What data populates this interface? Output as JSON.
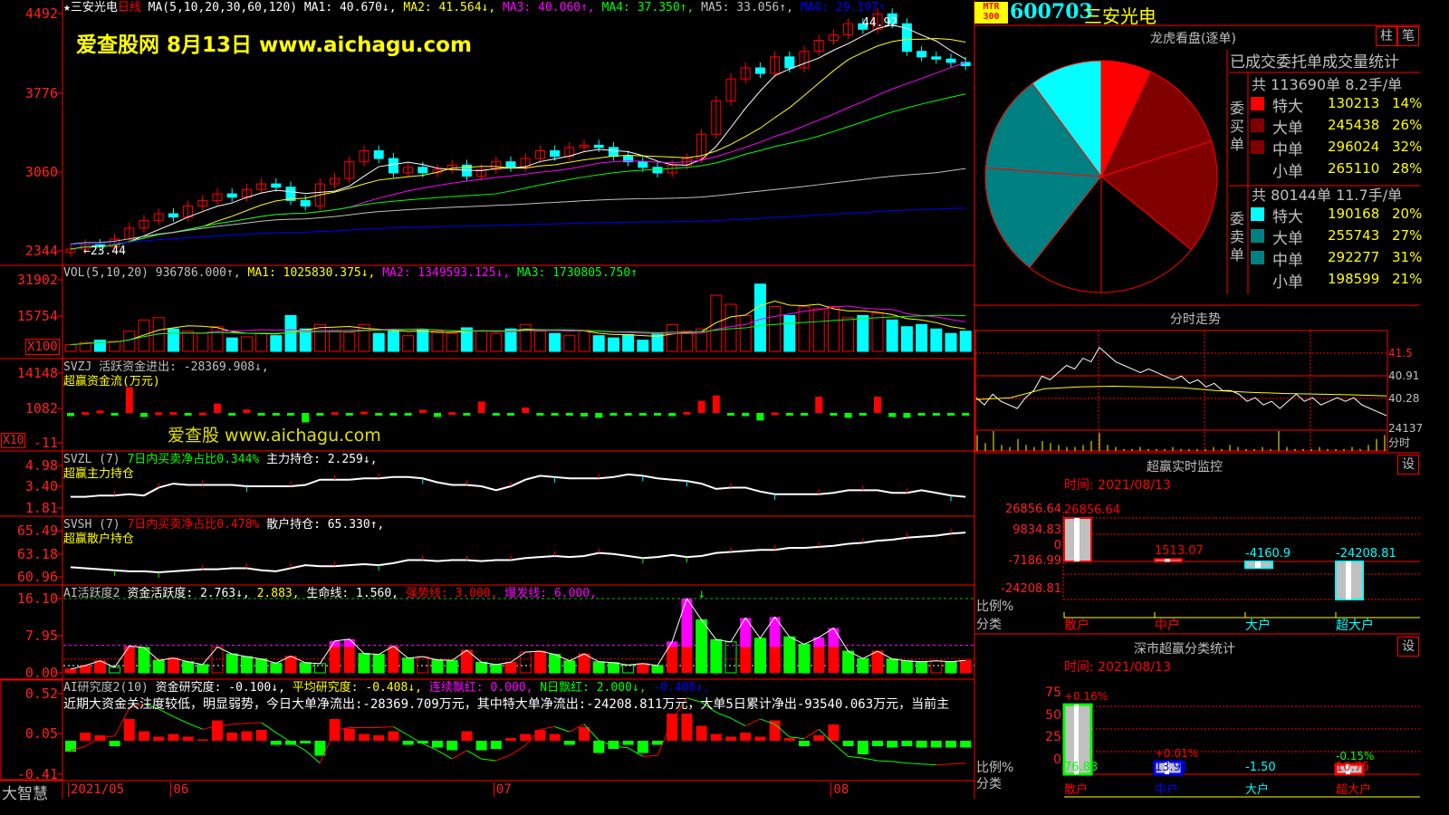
{
  "colors": {
    "up": "#ff0000",
    "down": "#00ffff",
    "axis": "#ff2020",
    "ma": [
      "#ffffff",
      "#ffff00",
      "#ff00ff",
      "#00ff00",
      "#c0c0c0",
      "#0000ff"
    ]
  },
  "main": {
    "header": [
      {
        "t": "★三安光电",
        "c": "#ffffff"
      },
      {
        "t": "日线 ",
        "c": "#ff0000"
      },
      {
        "t": "MA(5,10,20,30,60,120) MA1: 40.670↓, ",
        "c": "#ffffff"
      },
      {
        "t": "MA2: 41.564↓, ",
        "c": "#ffff00"
      },
      {
        "t": "MA3: 40.060↑, ",
        "c": "#ff00ff"
      },
      {
        "t": "MA4: 37.350↑, ",
        "c": "#00ff00"
      },
      {
        "t": "MA5: 33.056↑, ",
        "c": "#c0c0c0"
      },
      {
        "t": "MA6: 29.197↑",
        "c": "#0000ff"
      }
    ],
    "axis": [
      "4492",
      "3776",
      "3060",
      "2344"
    ],
    "high_label": "44.92",
    "low_label": "←23.44",
    "watermark": "爱查股网   8月13日   www.aichagu.com",
    "closes": [
      23.6,
      24.0,
      23.8,
      24.5,
      25.5,
      26.2,
      26.8,
      26.5,
      27.5,
      28.0,
      28.6,
      28.3,
      29.0,
      29.5,
      29.2,
      28.0,
      27.5,
      29.5,
      30.0,
      31.5,
      32.5,
      31.8,
      30.5,
      31.0,
      30.5,
      30.8,
      31.2,
      30.2,
      30.8,
      31.5,
      31.0,
      31.8,
      32.5,
      32.0,
      32.8,
      33.0,
      32.8,
      32.0,
      31.5,
      31.0,
      30.5,
      31.2,
      31.8,
      34.0,
      37.0,
      39.0,
      40.0,
      39.5,
      41.0,
      40.0,
      41.5,
      42.5,
      43.0,
      44.0,
      43.5,
      44.9,
      44.0,
      41.5,
      41.0,
      40.8,
      40.5,
      40.2
    ],
    "price_range": [
      23.44,
      44.92
    ]
  },
  "vol": {
    "header": [
      {
        "t": "VOL(5,10,20) 936786.000↑, ",
        "c": "#c0c0c0"
      },
      {
        "t": "MA1: 1025830.375↓, ",
        "c": "#ffff00"
      },
      {
        "t": "MA2: 1349593.125↓, ",
        "c": "#ff00ff"
      },
      {
        "t": "MA3: 1730805.750↑",
        "c": "#00ff00"
      }
    ],
    "axis": [
      "31902",
      "15754"
    ],
    "unit": "X100",
    "values": [
      3000,
      4000,
      5000,
      4500,
      9000,
      14000,
      15000,
      10000,
      9000,
      8000,
      11000,
      6000,
      6500,
      8000,
      7000,
      16000,
      10000,
      12000,
      9000,
      8500,
      12000,
      8000,
      9000,
      7000,
      9500,
      9000,
      8000,
      10500,
      9000,
      8000,
      10000,
      12000,
      9000,
      8000,
      7000,
      9500,
      7000,
      6000,
      7500,
      5000,
      8000,
      12000,
      9000,
      10000,
      25000,
      21000,
      16000,
      30000,
      20000,
      16000,
      20000,
      19000,
      20000,
      15000,
      16000,
      17000,
      14000,
      11000,
      12000,
      10000,
      8000,
      9000
    ]
  },
  "svzj": {
    "header": [
      {
        "t": "SVZJ  活跃资金进出: -28369.908↓,",
        "c": "#c0c0c0"
      }
    ],
    "sub": "超赢资金流(万元)",
    "axis": [
      "14148",
      "1082",
      "-11"
    ],
    "unit": "X10",
    "watermark": "爱查股 www.aichagu.com",
    "values": [
      -1200,
      300,
      900,
      -900,
      9500,
      -1500,
      200,
      300,
      -500,
      100,
      3500,
      -200,
      1300,
      -200,
      -900,
      -1000,
      -3500,
      -600,
      300,
      -1000,
      500,
      -600,
      -800,
      -400,
      1200,
      -1500,
      300,
      -200,
      4200,
      -1000,
      -800,
      2000,
      -500,
      -700,
      -200,
      -1300,
      -1800,
      -600,
      -1000,
      -400,
      -200,
      -1200,
      400,
      4500,
      6500,
      -600,
      -1200,
      -2800,
      200,
      -400,
      -300,
      6000,
      -800,
      -1800,
      -600,
      6000,
      -1500,
      -1800,
      -900,
      -300,
      -200,
      -700
    ]
  },
  "svzl": {
    "header": [
      {
        "t": "SVZL (7) ",
        "c": "#c0c0c0"
      },
      {
        "t": "7日内买卖净占比0.344% ",
        "c": "#00ff00"
      },
      {
        "t": "主力持仓: 2.259↓,",
        "c": "#ffffff"
      }
    ],
    "sub": "超赢主力持仓",
    "axis": [
      "4.98",
      "3.40",
      "1.81"
    ],
    "values": [
      2.6,
      2.6,
      2.7,
      2.7,
      2.8,
      2.7,
      3.3,
      3.6,
      3.5,
      3.5,
      3.5,
      3.5,
      3.4,
      3.4,
      3.4,
      3.4,
      3.5,
      3.9,
      3.9,
      3.9,
      4.0,
      4.0,
      4.1,
      4.1,
      4.0,
      3.7,
      3.5,
      3.5,
      3.4,
      3.1,
      3.4,
      3.9,
      4.2,
      4.1,
      4.0,
      4.0,
      4.0,
      4.1,
      4.3,
      4.2,
      4.0,
      3.9,
      3.8,
      3.6,
      3.2,
      3.3,
      3.3,
      3.0,
      2.8,
      2.8,
      2.8,
      2.8,
      2.9,
      3.1,
      3.1,
      3.1,
      2.9,
      2.9,
      3.1,
      2.9,
      2.7,
      2.6
    ]
  },
  "svsh": {
    "header": [
      {
        "t": "SVSH (7) ",
        "c": "#c0c0c0"
      },
      {
        "t": "7日内买卖净占比0.478% ",
        "c": "#ff0000"
      },
      {
        "t": "散户持仓: 65.330↑,",
        "c": "#ffffff"
      }
    ],
    "sub": "超赢散户持仓",
    "axis": [
      "65.49",
      "63.18",
      "60.96"
    ],
    "values": [
      61.9,
      61.8,
      61.7,
      61.6,
      61.5,
      61.5,
      61.4,
      61.5,
      61.6,
      61.7,
      61.7,
      61.8,
      61.8,
      61.6,
      61.5,
      61.8,
      62.1,
      62.0,
      62.0,
      62.1,
      62.2,
      62.1,
      62.3,
      62.6,
      62.6,
      62.5,
      62.6,
      62.6,
      62.5,
      62.6,
      62.6,
      62.8,
      62.9,
      63.0,
      62.9,
      63.0,
      63.3,
      63.2,
      63.0,
      62.8,
      62.9,
      63.1,
      62.9,
      63.0,
      63.3,
      63.4,
      63.5,
      63.6,
      63.6,
      63.8,
      63.8,
      63.9,
      64.0,
      64.2,
      64.3,
      64.5,
      64.6,
      64.8,
      64.9,
      65.0,
      65.2,
      65.3
    ]
  },
  "active": {
    "header": [
      {
        "t": "AI活跃度2 ",
        "c": "#c0c0c0"
      },
      {
        "t": "资金活跃度: 2.763↓, ",
        "c": "#ffffff"
      },
      {
        "t": "2.883, ",
        "c": "#ffff00"
      },
      {
        "t": "生命线: 1.560, ",
        "c": "#ffffff"
      },
      {
        "t": "强势线: 3.000, ",
        "c": "#ff0000"
      },
      {
        "t": "爆发线: 6.000,",
        "c": "#ff00ff"
      }
    ],
    "axis": [
      "16.10",
      "7.95",
      "0.00"
    ],
    "values": [
      0.8,
      1.6,
      2.6,
      1.2,
      5.8,
      5.5,
      2.7,
      3.2,
      2.4,
      1.8,
      5.6,
      4.1,
      3.5,
      3.0,
      2.1,
      3.6,
      2.2,
      2.0,
      6.9,
      7.3,
      4.2,
      4.0,
      5.8,
      3.2,
      3.5,
      2.8,
      2.7,
      4.9,
      2.3,
      1.8,
      2.3,
      4.5,
      4.7,
      4.0,
      2.6,
      4.1,
      2.4,
      2.2,
      1.7,
      2.0,
      1.6,
      6.8,
      16.1,
      11.5,
      7.2,
      6.7,
      11.9,
      7.5,
      12.1,
      7.8,
      6.2,
      7.7,
      9.7,
      4.7,
      3.1,
      4.7,
      3.0,
      2.6,
      2.4,
      2.6,
      2.4,
      2.7
    ],
    "lines": {
      "burst": 6,
      "strong": 3,
      "life": 1.56,
      "max": 16.1
    }
  },
  "research": {
    "header": [
      {
        "t": "AI研究度2(10) ",
        "c": "#c0c0c0"
      },
      {
        "t": "资金研究度: -0.100↓, ",
        "c": "#ffffff"
      },
      {
        "t": "平均研究度: -0.408↓, ",
        "c": "#ffff00"
      },
      {
        "t": "连续飘红: 0.000, ",
        "c": "#ff00ff"
      },
      {
        "t": "N日飘红: 2.000↓, ",
        "c": "#00ff00"
      },
      {
        "t": "-0.408↓,",
        "c": "#0000ff"
      }
    ],
    "comment": "近期大资金关注度较低，明显弱势，今日大单净流出:-28369.709万元，其中特大单净流出:-24208.811万元，大单5日累计净出-93540.063万元，当前主",
    "axis": [
      "0.52",
      "0.05",
      "-0.41"
    ],
    "bars": [
      -0.08,
      0.06,
      0.04,
      -0.04,
      0.16,
      0.07,
      0.03,
      0.05,
      0.03,
      0.01,
      0.15,
      0.06,
      0.07,
      0.08,
      -0.03,
      -0.03,
      -0.02,
      -0.11,
      0.16,
      0.09,
      0.05,
      0.04,
      0.07,
      -0.03,
      -0.02,
      -0.05,
      -0.07,
      0.07,
      -0.07,
      -0.06,
      0.02,
      0.05,
      0.08,
      0.05,
      -0.03,
      0.1,
      -0.09,
      -0.06,
      -0.03,
      -0.09,
      -0.03,
      0.2,
      0.2,
      0.11,
      0.05,
      0.03,
      0.06,
      0.03,
      0.15,
      0.02,
      -0.04,
      0.04,
      0.12,
      -0.04,
      -0.1,
      -0.04,
      -0.05,
      -0.04,
      -0.05,
      -0.05,
      -0.05,
      -0.05
    ],
    "line": [
      -0.15,
      -0.1,
      0.0,
      0.02,
      0.35,
      0.4,
      0.34,
      0.25,
      0.17,
      0.1,
      0.14,
      0.16,
      0.17,
      0.18,
      0.06,
      -0.05,
      -0.15,
      -0.3,
      0.09,
      0.12,
      0.12,
      0.12,
      0.13,
      0.03,
      -0.07,
      -0.15,
      -0.25,
      -0.15,
      -0.25,
      -0.27,
      -0.2,
      -0.09,
      0.1,
      0.13,
      0.07,
      0.16,
      -0.03,
      -0.1,
      -0.12,
      -0.22,
      -0.21,
      0.2,
      0.47,
      0.42,
      0.3,
      0.23,
      0.14,
      0.22,
      0.16,
      0.01,
      -0.01,
      0.1,
      -0.07,
      -0.22,
      -0.24,
      -0.27,
      -0.28,
      -0.3,
      -0.31,
      -0.32,
      -0.31,
      -0.3
    ]
  },
  "dates": {
    "labels": [
      "2021/05",
      "06",
      "07",
      "08"
    ],
    "indices": [
      0,
      7,
      29,
      52
    ]
  },
  "brand": "大智慧",
  "right": {
    "logo": {
      "top": "MTR",
      "bottom": "300"
    },
    "code": "600703",
    "name": "三安光电",
    "pie_title": "龙虎看盘(逐单)",
    "buttons": [
      "柱",
      "笔"
    ],
    "table_title": "已成交委托单成交量统计",
    "buy": {
      "label": "委买单",
      "summary": "共 113690单 8.2手/单",
      "rows": [
        {
          "name": "特大",
          "value": "130213",
          "pct": "14%",
          "color": "#ff0000"
        },
        {
          "name": "大单",
          "value": "245438",
          "pct": "26%",
          "color": "#800000"
        },
        {
          "name": "中单",
          "value": "296024",
          "pct": "32%",
          "color": "#800000"
        },
        {
          "name": "小单",
          "value": "265110",
          "pct": "28%",
          "color": "#000000"
        }
      ]
    },
    "sell": {
      "label": "委卖单",
      "summary": "共 80144单 11.7手/单",
      "rows": [
        {
          "name": "特大",
          "value": "190168",
          "pct": "20%",
          "color": "#00ffff"
        },
        {
          "name": "大单",
          "value": "255743",
          "pct": "27%",
          "color": "#008080"
        },
        {
          "name": "中单",
          "value": "292277",
          "pct": "31%",
          "color": "#008080"
        },
        {
          "name": "小单",
          "value": "198599",
          "pct": "21%",
          "color": "#000000"
        }
      ]
    },
    "intraday": {
      "title": "分时走势",
      "axis": [
        "41.5",
        "40.91",
        "40.28",
        "24137"
      ],
      "axis_bottom": "分时",
      "price": [
        40.3,
        40.1,
        40.4,
        40.2,
        40.1,
        40.0,
        40.3,
        40.5,
        40.9,
        40.8,
        41.0,
        41.2,
        41.1,
        41.4,
        41.3,
        41.7,
        41.5,
        41.3,
        41.2,
        41.1,
        41.0,
        41.1,
        41.0,
        40.9,
        40.8,
        40.9,
        40.7,
        40.8,
        40.6,
        40.7,
        40.5,
        40.5,
        40.4,
        40.2,
        40.3,
        40.1,
        40.2,
        40.0,
        40.2,
        40.4,
        40.2,
        40.3,
        40.1,
        40.2,
        40.3,
        40.2,
        40.3,
        40.1,
        40.0,
        39.9,
        39.8
      ],
      "avg": [
        40.25,
        40.3,
        40.55,
        40.6,
        40.62,
        40.6,
        40.58,
        40.5,
        40.45,
        40.42,
        40.4,
        40.38,
        40.35
      ],
      "volume": [
        8,
        4,
        10,
        3,
        2,
        6,
        3,
        2,
        5,
        4,
        3,
        2,
        2,
        3,
        5,
        9,
        3,
        2,
        1,
        1,
        2,
        1,
        1,
        1,
        2,
        1,
        1,
        1,
        1,
        2,
        1,
        3,
        2,
        1,
        1,
        2,
        1,
        10,
        2,
        1,
        1,
        1,
        2,
        1,
        1,
        1,
        2,
        1,
        3,
        6,
        8
      ]
    },
    "monitor": {
      "title": "超赢实时监控",
      "time": "时间: 2021/08/13",
      "set": "设",
      "axis": [
        "26856.64",
        "9834.83",
        "0",
        "-7186.99",
        "-24208.81"
      ],
      "ratio": "比例%",
      "category": "分类",
      "items": [
        {
          "name": "散户",
          "value": 26856.64,
          "label": "26856.64",
          "color": "#ff0000"
        },
        {
          "name": "中户",
          "value": 1513.07,
          "label": "1513.07",
          "color": "#ff0000"
        },
        {
          "name": "大户",
          "value": -4160.9,
          "label": "-4160.9",
          "color": "#00ffff"
        },
        {
          "name": "超大户",
          "value": -24208.81,
          "label": "-24208.81",
          "color": "#00ffff"
        }
      ]
    },
    "stats": {
      "title": "深市超赢分类统计",
      "time": "时间: 2021/08/13",
      "set": "设",
      "axis": [
        "75",
        "50",
        "25",
        "0"
      ],
      "ratio": "比例%",
      "category": "分类",
      "items": [
        {
          "name": "散户",
          "value": 76.83,
          "label": "76.83",
          "pct": "+0.16%",
          "color": "#00ff00",
          "pct_color": "#ff0000",
          "name_color": "#ff0000"
        },
        {
          "name": "中户",
          "value": 13.91,
          "label": "13.91",
          "pct": "+0.01%",
          "color": "#0000ff",
          "pct_color": "#ff0000",
          "name_color": "#0000ff"
        },
        {
          "name": "大户",
          "value": -1.5,
          "label": "-1.50",
          "pct": "",
          "color": "#00ffff",
          "pct_color": "#00ffff",
          "name_color": "#00ffff"
        },
        {
          "name": "超大户",
          "value": 10.75,
          "label": "10.75",
          "pct": "-0.15%",
          "color": "#ff0000",
          "pct_color": "#00ff00",
          "name_color": "#ff0000"
        }
      ]
    }
  }
}
